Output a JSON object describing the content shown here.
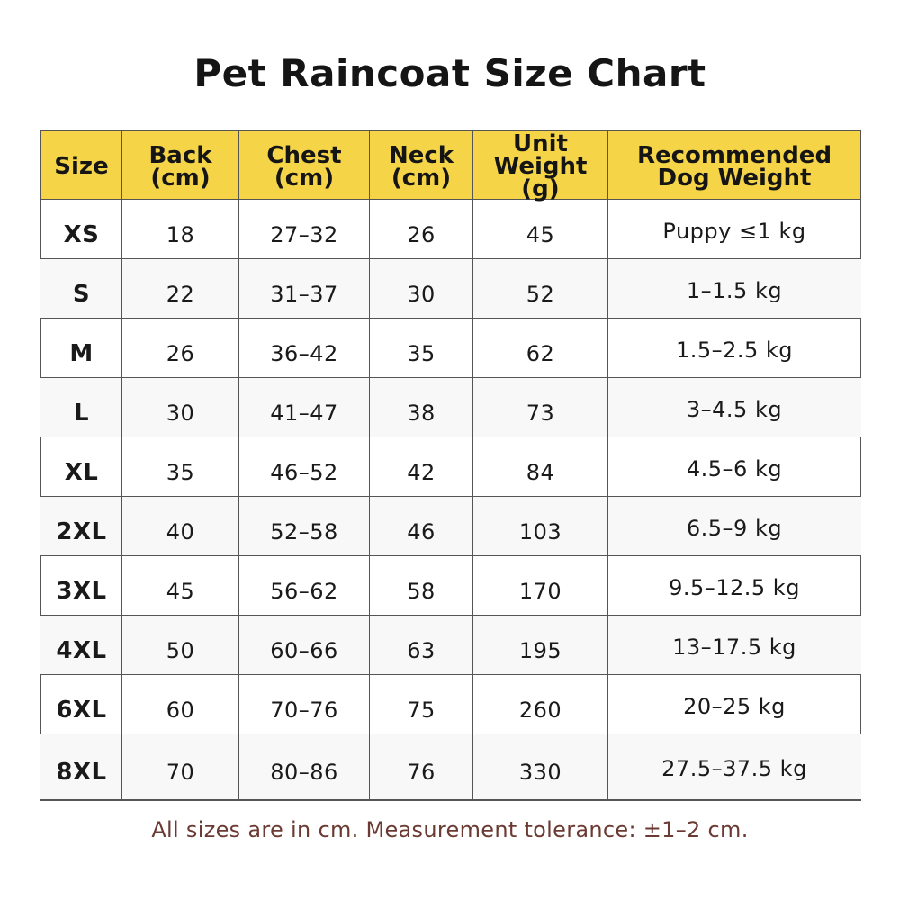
{
  "chart_data": {
    "type": "table",
    "title": "Pet Raincoat Size Chart",
    "columns": [
      [
        "Size"
      ],
      [
        "Back",
        "(cm)"
      ],
      [
        "Chest",
        "(cm)"
      ],
      [
        "Neck",
        "(cm)"
      ],
      [
        "Unit",
        "Weight (g)"
      ],
      [
        "Recommended",
        "Dog Weight"
      ]
    ],
    "rows": [
      [
        "XS",
        "18",
        "27–32",
        "26",
        "45",
        "Puppy ≤1 kg"
      ],
      [
        "S",
        "22",
        "31–37",
        "30",
        "52",
        "1–1.5 kg"
      ],
      [
        "M",
        "26",
        "36–42",
        "35",
        "62",
        "1.5–2.5 kg"
      ],
      [
        "L",
        "30",
        "41–47",
        "38",
        "73",
        "3–4.5 kg"
      ],
      [
        "XL",
        "35",
        "46–52",
        "42",
        "84",
        "4.5–6 kg"
      ],
      [
        "2XL",
        "40",
        "52–58",
        "46",
        "103",
        "6.5–9 kg"
      ],
      [
        "3XL",
        "45",
        "56–62",
        "58",
        "170",
        "9.5–12.5 kg"
      ],
      [
        "4XL",
        "50",
        "60–66",
        "63",
        "195",
        "13–17.5 kg"
      ],
      [
        "6XL",
        "60",
        "70–76",
        "75",
        "260",
        "20–25 kg"
      ],
      [
        "8XL",
        "70",
        "80–86",
        "76",
        "330",
        "27.5–37.5 kg"
      ]
    ],
    "footnote": "All sizes are in cm. Measurement tolerance: ±1–2 cm."
  },
  "colors": {
    "header_background": "#f5d547",
    "stripe_background": "#f8f8f8",
    "footnote_text": "#6b3a32",
    "border": "#555555"
  }
}
